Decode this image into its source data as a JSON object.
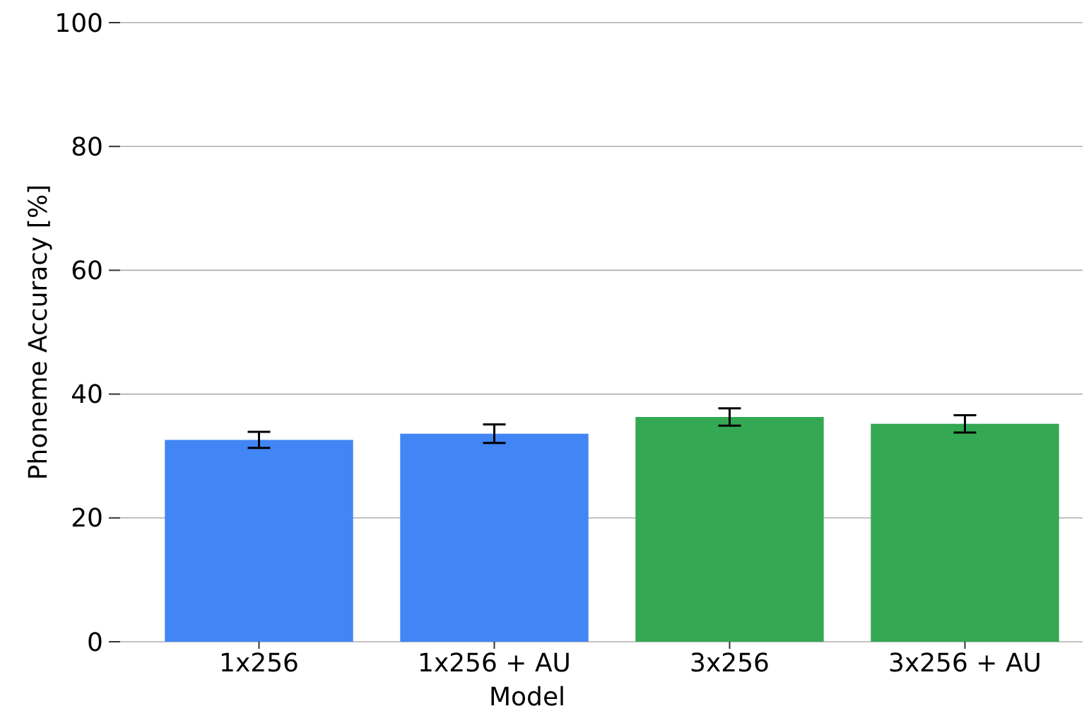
{
  "chart_data": {
    "type": "bar",
    "xlabel": "Model",
    "ylabel": "Phoneme Accuracy [%]",
    "categories": [
      "1x256",
      "1x256 + AU",
      "3x256",
      "3x256 + AU"
    ],
    "values": [
      32.6,
      33.6,
      36.3,
      35.2
    ],
    "errors": [
      1.3,
      1.5,
      1.4,
      1.4
    ],
    "colors": [
      "#4285f4",
      "#4285f4",
      "#34a853",
      "#34a853"
    ],
    "ylim": [
      0,
      100
    ],
    "yticks": [
      0,
      20,
      40,
      60,
      80,
      100
    ],
    "grid": "y"
  }
}
